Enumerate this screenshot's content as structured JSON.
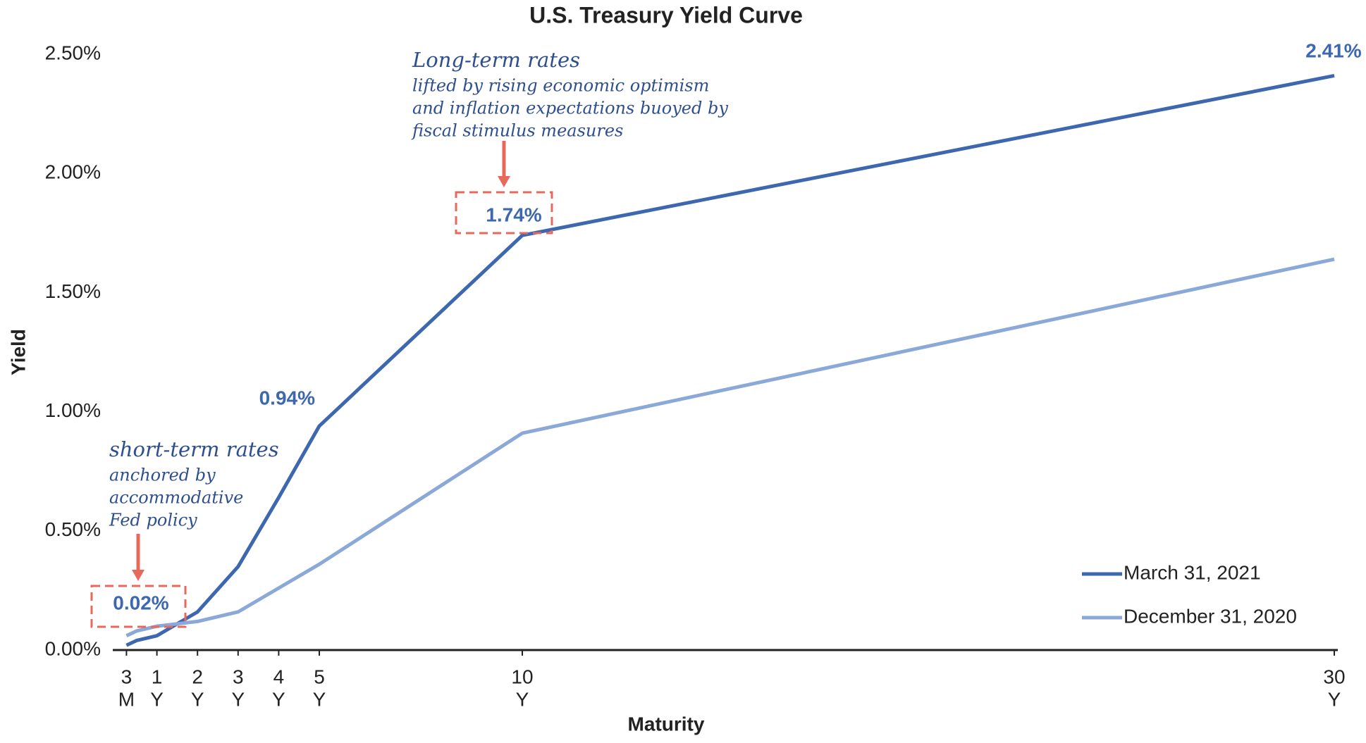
{
  "chart_data": {
    "type": "line",
    "title": "U.S. Treasury Yield Curve",
    "x_label": "Maturity",
    "y_label": "Yield",
    "x": [
      0.25,
      0.5,
      1,
      2,
      3,
      4,
      5,
      10,
      30
    ],
    "series": [
      {
        "name": "March 31, 2021",
        "color": "#3d68b0",
        "values": [
          0.02,
          0.04,
          0.06,
          0.16,
          0.35,
          0.64,
          0.94,
          1.74,
          2.41
        ],
        "value_labels": [
          "0.02%",
          null,
          null,
          null,
          null,
          null,
          "0.94%",
          "1.74%",
          "2.41%"
        ]
      },
      {
        "name": "December 31, 2020",
        "color": "#8aa8d8",
        "values": [
          0.06,
          0.08,
          0.1,
          0.12,
          0.16,
          0.26,
          0.36,
          0.91,
          1.64
        ]
      }
    ],
    "xlim": [
      0,
      30
    ],
    "xticks": [
      {
        "value": 0.25,
        "label": [
          "3",
          "M"
        ]
      },
      {
        "value": 1,
        "label": [
          "1",
          "Y"
        ]
      },
      {
        "value": 2,
        "label": [
          "2",
          "Y"
        ]
      },
      {
        "value": 3,
        "label": [
          "3",
          "Y"
        ]
      },
      {
        "value": 4,
        "label": [
          "4",
          "Y"
        ]
      },
      {
        "value": 5,
        "label": [
          "5",
          "Y"
        ]
      },
      {
        "value": 10,
        "label": [
          "10",
          "Y"
        ]
      },
      {
        "value": 30,
        "label": [
          "30",
          "Y"
        ]
      }
    ],
    "ylim": [
      0,
      2.5
    ],
    "yticks": [
      {
        "value": 0,
        "label": "0.00%"
      },
      {
        "value": 0.5,
        "label": "0.50%"
      },
      {
        "value": 1,
        "label": "1.00%"
      },
      {
        "value": 1.5,
        "label": "1.50%"
      },
      {
        "value": 2,
        "label": "2.00%"
      },
      {
        "value": 2.5,
        "label": "2.50%"
      }
    ],
    "legend": "lower right",
    "annotations": [
      {
        "title": "short-term rates",
        "lines": [
          "anchored by",
          "accommodative",
          "Fed policy"
        ]
      },
      {
        "title": "Long-term rates",
        "lines": [
          "lifted by rising economic optimism",
          "and inflation expectations buoyed by",
          "fiscal stimulus measures"
        ]
      }
    ]
  }
}
